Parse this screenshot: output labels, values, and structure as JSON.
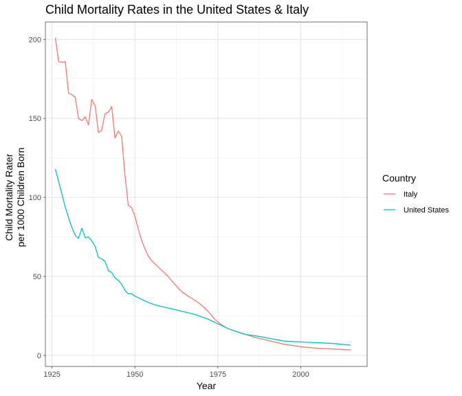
{
  "chart_data": {
    "type": "line",
    "title": "Child Mortality Rates in the United States & Italy",
    "xlabel": "Year",
    "ylabel_lines": [
      "Child Mortality Rater",
      "per 1000 Children Born"
    ],
    "xlim": [
      1923,
      2020
    ],
    "ylim": [
      -7,
      211
    ],
    "x_ticks": [
      1925,
      1950,
      1975,
      2000
    ],
    "y_ticks": [
      0,
      50,
      100,
      150,
      200
    ],
    "x_minor": [
      1937.5,
      1962.5,
      1987.5,
      2012.5
    ],
    "y_minor": [
      25,
      75,
      125,
      175
    ],
    "grid": true,
    "legend": {
      "title": "Country",
      "position": "right"
    },
    "series": [
      {
        "name": "Italy",
        "color": "#F8766D",
        "x": [
          1926,
          1927,
          1928,
          1929,
          1930,
          1931,
          1932,
          1933,
          1934,
          1935,
          1936,
          1937,
          1938,
          1939,
          1940,
          1941,
          1942,
          1943,
          1944,
          1945,
          1946,
          1947,
          1948,
          1949,
          1950,
          1951,
          1952,
          1953,
          1954,
          1955,
          1956,
          1957,
          1958,
          1959,
          1960,
          1962,
          1964,
          1966,
          1968,
          1970,
          1972,
          1974,
          1976,
          1978,
          1980,
          1983,
          1986,
          1990,
          1995,
          2000,
          2005,
          2010,
          2015
        ],
        "values": [
          201,
          186,
          185.5,
          186,
          166,
          165,
          163.5,
          150,
          148.5,
          151,
          146,
          162,
          158,
          141,
          142.5,
          153,
          154,
          157.5,
          137.5,
          142,
          138.5,
          114,
          95,
          93.5,
          88,
          80,
          73,
          67.5,
          63,
          60,
          58,
          56,
          54,
          52,
          50,
          45,
          40.5,
          37.5,
          35,
          32,
          28,
          23,
          19.5,
          17,
          15.5,
          13.5,
          11.5,
          9.5,
          7,
          5.5,
          4.5,
          4,
          3.5
        ]
      },
      {
        "name": "United States",
        "color": "#00BFC4",
        "x": [
          1926,
          1927,
          1928,
          1929,
          1930,
          1931,
          1932,
          1933,
          1934,
          1935,
          1936,
          1937,
          1938,
          1939,
          1940,
          1941,
          1942,
          1943,
          1944,
          1945,
          1946,
          1947,
          1948,
          1949,
          1950,
          1952,
          1954,
          1956,
          1958,
          1960,
          1962,
          1964,
          1966,
          1968,
          1970,
          1972,
          1974,
          1976,
          1978,
          1980,
          1982,
          1984,
          1986,
          1990,
          1995,
          2000,
          2005,
          2010,
          2015
        ],
        "values": [
          118,
          110,
          102,
          94,
          87,
          81,
          76,
          74,
          80.5,
          74.5,
          75,
          72.5,
          69,
          62,
          61,
          59.5,
          53.5,
          52.5,
          49,
          47.5,
          45,
          41,
          39,
          39,
          37.5,
          35.5,
          33.5,
          32,
          31,
          30,
          29,
          28,
          27,
          26,
          24.5,
          23,
          21,
          19,
          17,
          15.5,
          14,
          13,
          12.5,
          11,
          9,
          8.5,
          8,
          7.5,
          6.5
        ]
      }
    ]
  }
}
